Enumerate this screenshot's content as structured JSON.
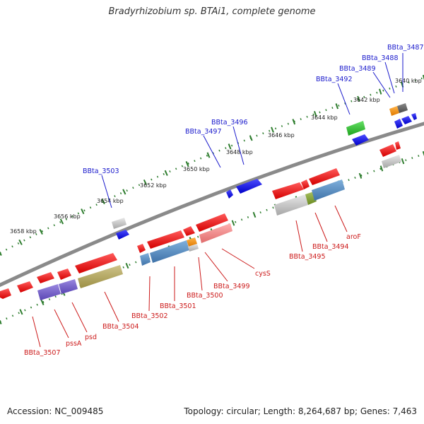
{
  "title": "Bradyrhizobium sp. BTAi1, complete genome",
  "accession_text": "Accession: NC_009485",
  "info_text": "Topology: circular; Length: 8,264,687 bp; Genes: 7,463",
  "colors": {
    "backbone": "#8a8a8a",
    "tick": "#2e7d2e",
    "forward_gene": "#ee1c1c",
    "reverse_gene": "#1a1aee",
    "label_blue": "#1a1acc",
    "label_red": "#cc1a1a"
  },
  "kbp_labels": [
    "3640 kbp",
    "3642 kbp",
    "3644 kbp",
    "3646 kbp",
    "3648 kbp",
    "3650 kbp",
    "3652 kbp",
    "3654 kbp",
    "3656 kbp",
    "3658 kbp"
  ],
  "top_gene_labels": [
    "BBta_3487",
    "BBta_3488",
    "BBta_3489",
    "BBta_3492",
    "BBta_3496",
    "BBta_3497",
    "BBta_3503"
  ],
  "bottom_gene_labels": [
    "aroF",
    "BBta_3494",
    "BBta_3495",
    "cysS",
    "BBta_3499",
    "BBta_3500",
    "BBta_3501",
    "BBta_3502",
    "BBta_3504",
    "psd",
    "pssA",
    "BBta_3507"
  ]
}
